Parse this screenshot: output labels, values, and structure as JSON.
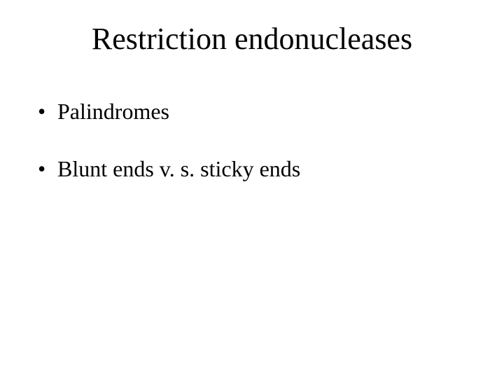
{
  "slide": {
    "title": "Restriction endonucleases",
    "bullets": [
      {
        "marker": "•",
        "text": "Palindromes"
      },
      {
        "marker": "•",
        "text": "Blunt ends v. s. sticky ends"
      }
    ],
    "colors": {
      "background": "#ffffff",
      "text": "#000000"
    },
    "title_fontsize": 44,
    "body_fontsize": 32,
    "font_family": "Times New Roman"
  }
}
